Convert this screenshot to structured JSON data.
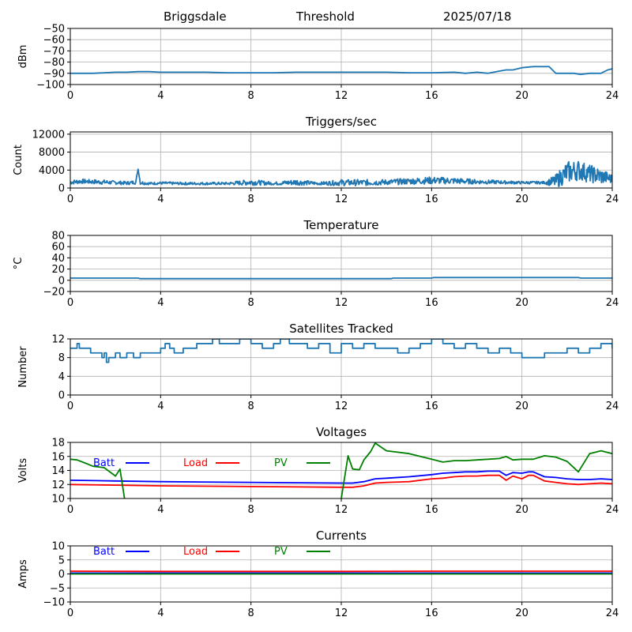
{
  "header": {
    "station": "Briggsdale",
    "mode": "Threshold",
    "date": "2025/07/18"
  },
  "colors": {
    "series": "#1f77b4",
    "batt": "#0000ff",
    "load": "#ff0000",
    "pv": "#008000",
    "grid": "#b0b0b0",
    "axis": "#000000"
  },
  "chart_data": [
    {
      "id": "threshold",
      "type": "line",
      "title": "",
      "xlabel": "",
      "ylabel": "dBm",
      "xlim": [
        0,
        24
      ],
      "ylim": [
        -100,
        -50
      ],
      "x_ticks": [
        "0",
        "4",
        "8",
        "12",
        "16",
        "20",
        "24"
      ],
      "y_ticks": [
        {
          "v": -50,
          "label": "−50"
        },
        {
          "v": -60,
          "label": "−60"
        },
        {
          "v": -70,
          "label": "−70"
        },
        {
          "v": -80,
          "label": "−80"
        },
        {
          "v": -90,
          "label": "−90"
        },
        {
          "v": -100,
          "label": "−100"
        }
      ],
      "grid": true,
      "series": [
        {
          "color_key": "series",
          "x": [
            0,
            1,
            1.5,
            2,
            2.5,
            3,
            3.5,
            4,
            5,
            6,
            7,
            8,
            9,
            10,
            11,
            12,
            13,
            14,
            15,
            16,
            17,
            17.5,
            18,
            18.5,
            19,
            19.3,
            19.6,
            19.8,
            20,
            20.5,
            21,
            21.2,
            21.5,
            22,
            22.3,
            22.6,
            23,
            23.5,
            23.8,
            24
          ],
          "y": [
            -90,
            -90,
            -89.5,
            -89,
            -89,
            -88.5,
            -88.5,
            -89,
            -89,
            -89,
            -89.5,
            -89.5,
            -89.5,
            -89,
            -89,
            -89,
            -89,
            -89,
            -89.5,
            -89.5,
            -89,
            -90,
            -89,
            -90,
            -88,
            -87,
            -87,
            -86,
            -85,
            -84,
            -84,
            -84,
            -90,
            -90,
            -90,
            -91,
            -90,
            -90,
            -87,
            -86
          ]
        }
      ]
    },
    {
      "id": "triggers",
      "type": "line",
      "title": "Triggers/sec",
      "xlabel": "",
      "ylabel": "Count",
      "xlim": [
        0,
        24
      ],
      "ylim": [
        0,
        12500
      ],
      "x_ticks": [
        "0",
        "4",
        "8",
        "12",
        "16",
        "20",
        "24"
      ],
      "y_ticks": [
        {
          "v": 0,
          "label": "0"
        },
        {
          "v": 4000,
          "label": "4000"
        },
        {
          "v": 8000,
          "label": "8000"
        },
        {
          "v": 12000,
          "label": "12000"
        }
      ],
      "grid": true,
      "series": [
        {
          "color_key": "series",
          "noisy": true,
          "x": [
            0,
            0.5,
            1,
            1.5,
            2,
            2.5,
            2.9,
            3,
            3.1,
            3.5,
            4,
            5,
            6,
            7,
            8,
            9,
            10,
            11,
            12,
            13,
            14,
            15,
            16,
            17,
            18,
            19,
            20,
            21,
            21.5,
            22,
            22.5,
            23,
            23.5,
            24
          ],
          "y": [
            1300,
            1500,
            1400,
            1300,
            1200,
            1100,
            1300,
            4200,
            1200,
            1000,
            1100,
            1000,
            1000,
            1000,
            1300,
            1000,
            1300,
            1000,
            1200,
            1200,
            1300,
            1500,
            1700,
            1600,
            1400,
            1300,
            1200,
            1200,
            1500,
            3500,
            4000,
            3200,
            2600,
            2000
          ],
          "amp": [
            500,
            500,
            500,
            500,
            400,
            400,
            400,
            0,
            400,
            300,
            300,
            300,
            300,
            300,
            700,
            300,
            700,
            300,
            700,
            700,
            600,
            700,
            800,
            700,
            500,
            400,
            300,
            300,
            1500,
            2500,
            2300,
            2000,
            1800,
            1000
          ]
        }
      ]
    },
    {
      "id": "temperature",
      "type": "line",
      "title": "Temperature",
      "xlabel": "",
      "ylabel": "°C",
      "xlim": [
        0,
        24
      ],
      "ylim": [
        -20,
        80
      ],
      "x_ticks": [
        "0",
        "4",
        "8",
        "12",
        "16",
        "20",
        "24"
      ],
      "y_ticks": [
        {
          "v": -20,
          "label": "−20"
        },
        {
          "v": 0,
          "label": "0"
        },
        {
          "v": 20,
          "label": "20"
        },
        {
          "v": 40,
          "label": "40"
        },
        {
          "v": 60,
          "label": "60"
        },
        {
          "v": 80,
          "label": "80"
        }
      ],
      "grid": true,
      "series": [
        {
          "color_key": "series",
          "x": [
            0,
            3,
            3.1,
            14.2,
            14.3,
            16,
            16.1,
            22.5,
            22.6,
            24
          ],
          "y": [
            4,
            4,
            3,
            3,
            4,
            4,
            5,
            5,
            4,
            4
          ]
        }
      ]
    },
    {
      "id": "satellites",
      "type": "line",
      "title": "Satellites Tracked",
      "xlabel": "",
      "ylabel": "Number",
      "xlim": [
        0,
        24
      ],
      "ylim": [
        0,
        12
      ],
      "x_ticks": [
        "0",
        "4",
        "8",
        "12",
        "16",
        "20",
        "24"
      ],
      "y_ticks": [
        {
          "v": 0,
          "label": "0"
        },
        {
          "v": 4,
          "label": "4"
        },
        {
          "v": 8,
          "label": "8"
        },
        {
          "v": 12,
          "label": "12"
        }
      ],
      "grid": true,
      "series": [
        {
          "color_key": "series",
          "step": true,
          "x": [
            0,
            0.3,
            0.4,
            0.5,
            0.9,
            1.0,
            1.3,
            1.4,
            1.5,
            1.6,
            1.7,
            2.0,
            2.2,
            2.5,
            2.8,
            3.1,
            4.0,
            4.2,
            4.4,
            4.6,
            5.0,
            5.3,
            5.6,
            6.0,
            6.3,
            6.6,
            7.0,
            7.5,
            8.0,
            8.5,
            9.0,
            9.3,
            9.7,
            10.0,
            10.5,
            11.0,
            11.5,
            12.0,
            12.5,
            13.0,
            13.5,
            14.0,
            14.5,
            15.0,
            15.5,
            16.0,
            16.5,
            17.0,
            17.5,
            18.0,
            18.5,
            19.0,
            19.5,
            20.0,
            20.5,
            21.0,
            21.5,
            22.0,
            22.5,
            23.0,
            23.5,
            24
          ],
          "y": [
            10,
            11,
            10,
            10,
            9,
            9,
            9,
            8,
            9,
            7,
            8,
            9,
            8,
            9,
            8,
            9,
            10,
            11,
            10,
            9,
            10,
            10,
            11,
            11,
            12,
            11,
            11,
            12,
            11,
            10,
            11,
            12,
            11,
            11,
            10,
            11,
            9,
            11,
            10,
            11,
            10,
            10,
            9,
            10,
            11,
            12,
            11,
            10,
            11,
            10,
            9,
            10,
            9,
            8,
            8,
            9,
            9,
            10,
            9,
            10,
            11,
            10
          ]
        }
      ]
    },
    {
      "id": "voltages",
      "type": "line",
      "title": "Voltages",
      "xlabel": "",
      "ylabel": "Volts",
      "xlim": [
        0,
        24
      ],
      "ylim": [
        10,
        18
      ],
      "x_ticks": [
        "0",
        "4",
        "8",
        "12",
        "16",
        "20",
        "24"
      ],
      "y_ticks": [
        {
          "v": 10,
          "label": "10"
        },
        {
          "v": 12,
          "label": "12"
        },
        {
          "v": 14,
          "label": "14"
        },
        {
          "v": 16,
          "label": "16"
        },
        {
          "v": 18,
          "label": "18"
        }
      ],
      "grid": true,
      "legend": [
        {
          "label": "Batt",
          "color_key": "batt"
        },
        {
          "label": "Load",
          "color_key": "load"
        },
        {
          "label": "PV",
          "color_key": "pv"
        }
      ],
      "series": [
        {
          "name": "Batt",
          "color_key": "batt",
          "x": [
            0,
            2,
            4,
            8,
            12,
            12.5,
            13,
            13.5,
            14,
            15,
            16,
            16.5,
            17,
            17.5,
            18,
            18.5,
            19,
            19.3,
            19.6,
            20,
            20.3,
            20.5,
            21,
            21.5,
            22,
            22.5,
            23,
            23.5,
            24
          ],
          "y": [
            12.6,
            12.5,
            12.4,
            12.3,
            12.2,
            12.2,
            12.4,
            12.8,
            12.9,
            13.1,
            13.4,
            13.6,
            13.7,
            13.8,
            13.8,
            13.9,
            13.9,
            13.3,
            13.7,
            13.6,
            13.8,
            13.8,
            13.1,
            13.0,
            12.8,
            12.7,
            12.7,
            12.8,
            12.7
          ]
        },
        {
          "name": "Load",
          "color_key": "load",
          "x": [
            0,
            2,
            4,
            8,
            12,
            12.5,
            13,
            13.5,
            14,
            15,
            16,
            16.5,
            17,
            17.5,
            18,
            18.5,
            19,
            19.3,
            19.6,
            20,
            20.3,
            20.5,
            21,
            21.5,
            22,
            22.5,
            23,
            23.5,
            24
          ],
          "y": [
            12.0,
            11.9,
            11.8,
            11.7,
            11.6,
            11.6,
            11.8,
            12.2,
            12.3,
            12.4,
            12.8,
            12.9,
            13.1,
            13.2,
            13.2,
            13.3,
            13.3,
            12.6,
            13.2,
            12.8,
            13.3,
            13.3,
            12.5,
            12.3,
            12.1,
            12.0,
            12.1,
            12.2,
            12.1
          ]
        },
        {
          "name": "PV",
          "color_key": "pv",
          "x": [
            0,
            0.3,
            0.7,
            1,
            1.5,
            2,
            2.2,
            2.4,
            2.6,
            12.0,
            12.3,
            12.5,
            12.8,
            13.0,
            13.3,
            13.5,
            14,
            15,
            16,
            16.5,
            17,
            17.5,
            18,
            18.5,
            19,
            19.3,
            19.6,
            20,
            20.5,
            21,
            21.5,
            22,
            22.5,
            23,
            23.5,
            24
          ],
          "y": [
            15.6,
            15.5,
            15.0,
            14.6,
            14.4,
            13.2,
            14.2,
            10.0,
            null,
            10.0,
            16.1,
            14.2,
            14.1,
            15.5,
            16.7,
            17.9,
            16.8,
            16.4,
            15.6,
            15.2,
            15.4,
            15.4,
            15.5,
            15.6,
            15.7,
            16.0,
            15.5,
            15.6,
            15.6,
            16.1,
            15.9,
            15.3,
            13.8,
            16.4,
            16.8,
            16.4
          ]
        }
      ]
    },
    {
      "id": "currents",
      "type": "line",
      "title": "Currents",
      "xlabel": "",
      "ylabel": "Amps",
      "xlim": [
        0,
        24
      ],
      "ylim": [
        -10,
        10
      ],
      "x_ticks": [
        "0",
        "4",
        "8",
        "12",
        "16",
        "20",
        "24"
      ],
      "y_ticks": [
        {
          "v": -10,
          "label": "−10"
        },
        {
          "v": -5,
          "label": "−5"
        },
        {
          "v": 0,
          "label": "0"
        },
        {
          "v": 5,
          "label": "5"
        },
        {
          "v": 10,
          "label": "10"
        }
      ],
      "grid": true,
      "legend": [
        {
          "label": "Batt",
          "color_key": "batt"
        },
        {
          "label": "Load",
          "color_key": "load"
        },
        {
          "label": "PV",
          "color_key": "pv"
        }
      ],
      "series": [
        {
          "name": "Batt",
          "color_key": "batt",
          "x": [
            0,
            24
          ],
          "y": [
            0.3,
            0.3
          ]
        },
        {
          "name": "Load",
          "color_key": "load",
          "x": [
            0,
            4,
            8,
            12,
            16,
            20,
            24
          ],
          "y": [
            1.0,
            0.9,
            0.9,
            0.9,
            1.0,
            1.0,
            1.0
          ]
        },
        {
          "name": "PV",
          "color_key": "pv",
          "x": [
            0,
            24
          ],
          "y": [
            0.0,
            0.0
          ]
        }
      ]
    }
  ]
}
